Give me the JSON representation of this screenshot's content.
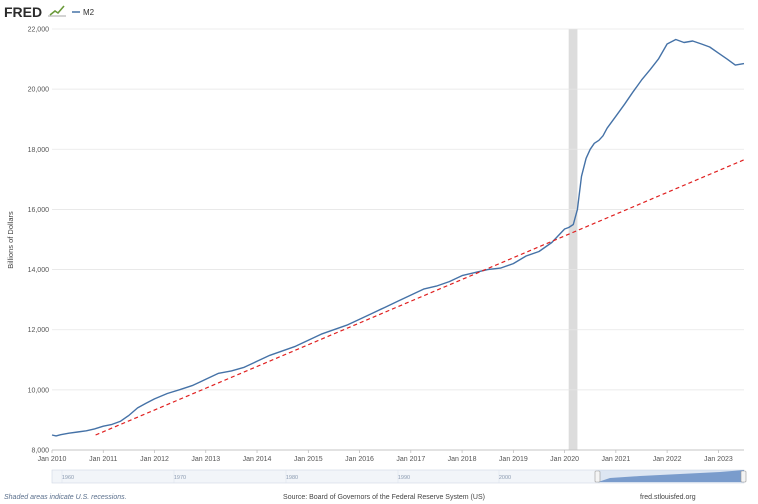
{
  "header": {
    "logo": "FRED",
    "legend_label": "M2"
  },
  "colors": {
    "series_line": "#4572a7",
    "trend_line": "#e02020",
    "recession_band": "#dcdcdc",
    "grid": "#e6e6e6",
    "navigator_fill": "#3f6fb5"
  },
  "chart_data": {
    "type": "line",
    "title": "",
    "xlabel": "",
    "ylabel": "Billions of Dollars",
    "xlim": [
      2010.0,
      2023.5
    ],
    "ylim": [
      8000,
      22000
    ],
    "y_ticks": [
      "8,000",
      "10,000",
      "12,000",
      "14,000",
      "16,000",
      "18,000",
      "20,000",
      "22,000"
    ],
    "y_tick_values": [
      8000,
      10000,
      12000,
      14000,
      16000,
      18000,
      20000,
      22000
    ],
    "x_ticks": [
      "Jan 2010",
      "Jan 2011",
      "Jan 2012",
      "Jan 2013",
      "Jan 2014",
      "Jan 2015",
      "Jan 2016",
      "Jan 2017",
      "Jan 2018",
      "Jan 2019",
      "Jan 2020",
      "Jan 2021",
      "Jan 2022",
      "Jan 2023"
    ],
    "x_tick_values": [
      2010,
      2011,
      2012,
      2013,
      2014,
      2015,
      2016,
      2017,
      2018,
      2019,
      2020,
      2021,
      2022,
      2023
    ],
    "recession": {
      "start": 2020.08,
      "end": 2020.25
    },
    "grid": true,
    "series": [
      {
        "name": "M2",
        "x": [
          2010.0,
          2010.08,
          2010.17,
          2010.33,
          2010.5,
          2010.67,
          2010.83,
          2011.0,
          2011.17,
          2011.33,
          2011.5,
          2011.67,
          2011.83,
          2012.0,
          2012.25,
          2012.5,
          2012.75,
          2013.0,
          2013.25,
          2013.5,
          2013.75,
          2014.0,
          2014.25,
          2014.5,
          2014.75,
          2015.0,
          2015.25,
          2015.5,
          2015.75,
          2016.0,
          2016.25,
          2016.5,
          2016.75,
          2017.0,
          2017.25,
          2017.5,
          2017.75,
          2018.0,
          2018.25,
          2018.5,
          2018.75,
          2019.0,
          2019.25,
          2019.5,
          2019.75,
          2020.0,
          2020.08,
          2020.17,
          2020.25,
          2020.33,
          2020.42,
          2020.5,
          2020.58,
          2020.67,
          2020.75,
          2020.83,
          2021.0,
          2021.17,
          2021.33,
          2021.5,
          2021.67,
          2021.83,
          2022.0,
          2022.17,
          2022.33,
          2022.5,
          2022.67,
          2022.83,
          2023.0,
          2023.17,
          2023.33,
          2023.5
        ],
        "values": [
          8500,
          8470,
          8510,
          8560,
          8600,
          8640,
          8700,
          8790,
          8850,
          8950,
          9150,
          9400,
          9550,
          9700,
          9880,
          10010,
          10150,
          10350,
          10550,
          10630,
          10750,
          10950,
          11150,
          11300,
          11450,
          11650,
          11850,
          12000,
          12150,
          12350,
          12550,
          12750,
          12950,
          13150,
          13350,
          13450,
          13600,
          13800,
          13900,
          14000,
          14050,
          14200,
          14450,
          14600,
          14900,
          15350,
          15400,
          15500,
          16000,
          17100,
          17700,
          18000,
          18200,
          18300,
          18450,
          18700,
          19100,
          19500,
          19900,
          20300,
          20650,
          21000,
          21500,
          21650,
          21550,
          21600,
          21500,
          21400,
          21200,
          21000,
          20800,
          20850
        ]
      },
      {
        "name": "",
        "values": [
          8500,
          17650
        ],
        "x": [
          2010.85,
          2023.5
        ]
      }
    ]
  },
  "navigator": {
    "ticks": [
      "1960",
      "1970",
      "1980",
      "1990",
      "2000"
    ]
  },
  "footer": {
    "recession_note": "Shaded areas indicate U.S. recessions.",
    "source": "Source: Board of Governors of the Federal Reserve System (US)",
    "site": "fred.stlouisfed.org"
  }
}
